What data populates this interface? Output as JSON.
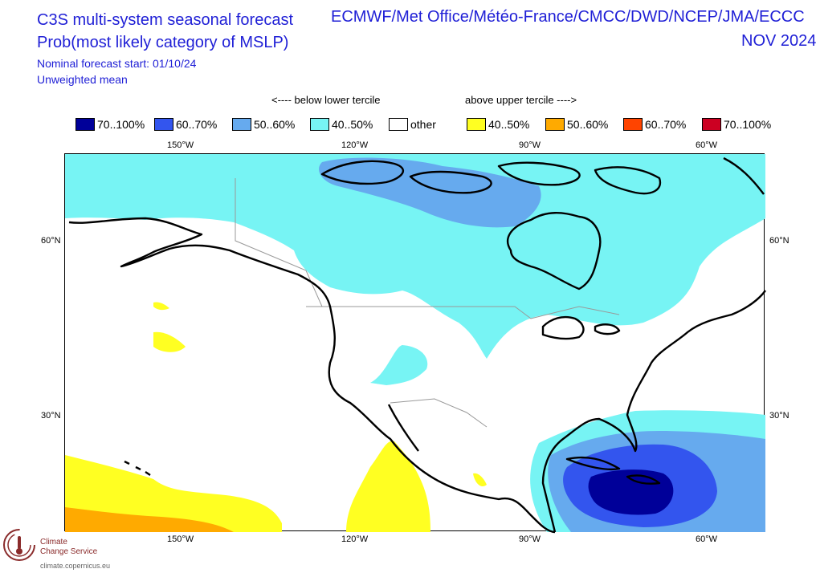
{
  "title": {
    "line1": "C3S multi-system seasonal forecast",
    "line2": "Prob(most likely category of MSLP)",
    "start": "Nominal forecast start: 01/10/24",
    "mean": "Unweighted mean",
    "systems": "ECMWF/Met Office/Météo-France/CMCC/DWD/NCEP/JMA/ECCC",
    "period": "NOV 2024"
  },
  "legend": {
    "below_caption": "<---- below lower tercile",
    "above_caption": "above upper tercile ---->",
    "items": [
      {
        "label": "70..100%",
        "color": "#000099"
      },
      {
        "label": "60..70%",
        "color": "#3355ee"
      },
      {
        "label": "50..60%",
        "color": "#66aaee"
      },
      {
        "label": "40..50%",
        "color": "#77f4f4"
      },
      {
        "label": "other",
        "color": "#ffffff"
      },
      {
        "label": "40..50%",
        "color": "#ffff22"
      },
      {
        "label": "50..60%",
        "color": "#ffaa00"
      },
      {
        "label": "60..70%",
        "color": "#ff4400"
      },
      {
        "label": "70..100%",
        "color": "#cc0022"
      }
    ]
  },
  "axes": {
    "lon_top": [
      "150°W",
      "120°W",
      "90°W",
      "60°W"
    ],
    "lon_bottom": [
      "150°W",
      "120°W",
      "90°W",
      "60°W"
    ],
    "lat_left": [
      "60°N",
      "30°N"
    ],
    "lat_right": [
      "60°N",
      "30°N"
    ]
  },
  "brand": {
    "name_line1": "Climate",
    "name_line2": "Change Service",
    "url": "climate.copernicus.eu"
  }
}
